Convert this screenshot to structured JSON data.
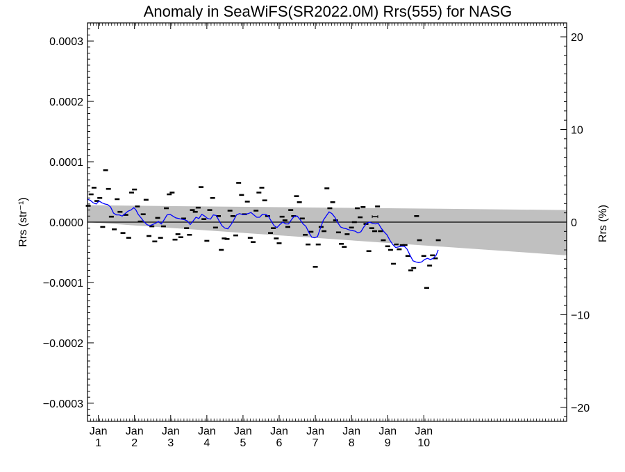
{
  "chart_data": {
    "type": "line",
    "title": "Anomaly in SeaWiFS(SR2022.0M) Rrs(555) for NASG",
    "ylabel_left": "Rrs (str⁻¹)",
    "ylabel_right": "Rrs (%)",
    "xlabel": "",
    "xlim": [
      1997.7,
      2010.95
    ],
    "ylim_left": [
      -0.00033,
      0.00033
    ],
    "ylim_right": [
      -21.5,
      21.5
    ],
    "grid": false,
    "x_ticks": [
      {
        "value": 1998,
        "line1": "Jan",
        "line2": "1"
      },
      {
        "value": 1999,
        "line1": "Jan",
        "line2": "2"
      },
      {
        "value": 2000,
        "line1": "Jan",
        "line2": "3"
      },
      {
        "value": 2001,
        "line1": "Jan",
        "line2": "4"
      },
      {
        "value": 2002,
        "line1": "Jan",
        "line2": "5"
      },
      {
        "value": 2003,
        "line1": "Jan",
        "line2": "6"
      },
      {
        "value": 2004,
        "line1": "Jan",
        "line2": "7"
      },
      {
        "value": 2005,
        "line1": "Jan",
        "line2": "8"
      },
      {
        "value": 2006,
        "line1": "Jan",
        "line2": "9"
      },
      {
        "value": 2007,
        "line1": "Jan",
        "line2": "10"
      }
    ],
    "y_ticks_left": [
      {
        "value": 0.0003,
        "label": "0.0003"
      },
      {
        "value": 0.0002,
        "label": "0.0002"
      },
      {
        "value": 0.0001,
        "label": "0.0001"
      },
      {
        "value": 0.0,
        "label": "0.0000"
      },
      {
        "value": -0.0001,
        "label": "−0.0001"
      },
      {
        "value": -0.0002,
        "label": "−0.0002"
      },
      {
        "value": -0.0003,
        "label": "−0.0003"
      }
    ],
    "y_ticks_right": [
      {
        "value": 20,
        "label": "20"
      },
      {
        "value": 10,
        "label": "10"
      },
      {
        "value": 0,
        "label": "0"
      },
      {
        "value": -10,
        "label": "−10"
      },
      {
        "value": -20,
        "label": "−20"
      }
    ],
    "band": {
      "color": "#c0c0c0",
      "upper": [
        [
          1997.7,
          2.8e-05
        ],
        [
          2010.95,
          2e-05
        ]
      ],
      "lower": [
        [
          1997.7,
          0.0
        ],
        [
          2010.95,
          -5.5e-05
        ]
      ]
    },
    "monthly_points": [
      [
        1997.72,
        2.7e-05
      ],
      [
        1997.8,
        4.6e-05
      ],
      [
        1997.88,
        5.7e-05
      ],
      [
        1997.96,
        3.5e-05
      ],
      [
        1998.04,
        4e-05
      ],
      [
        1998.12,
        -8e-06
      ],
      [
        1998.2,
        8.6e-05
      ],
      [
        1998.28,
        5.5e-05
      ],
      [
        1998.36,
        9e-06
      ],
      [
        1998.44,
        -1.2e-05
      ],
      [
        1998.52,
        3.8e-05
      ],
      [
        1998.6,
        1.7e-05
      ],
      [
        1998.68,
        -1.8e-05
      ],
      [
        1998.76,
        1.2e-05
      ],
      [
        1998.84,
        -2.6e-05
      ],
      [
        1998.92,
        4.9e-05
      ],
      [
        1999.0,
        5.4e-05
      ],
      [
        1999.08,
        2.6e-05
      ],
      [
        1999.16,
        1e-06
      ],
      [
        1999.24,
        1.3e-05
      ],
      [
        1999.32,
        3.7e-05
      ],
      [
        1999.4,
        -2.3e-05
      ],
      [
        1999.48,
        -7e-06
      ],
      [
        1999.56,
        -3.2e-05
      ],
      [
        1999.64,
        7e-06
      ],
      [
        1999.72,
        -2.6e-05
      ],
      [
        1999.8,
        -7e-06
      ],
      [
        1999.88,
        2.3e-05
      ],
      [
        1999.96,
        4.6e-05
      ],
      [
        2000.04,
        4.9e-05
      ],
      [
        2000.12,
        -2.9e-05
      ],
      [
        2000.2,
        -2e-05
      ],
      [
        2000.28,
        -2.5e-05
      ],
      [
        2000.36,
        6e-06
      ],
      [
        2000.44,
        -1e-05
      ],
      [
        2000.52,
        -2.1e-05
      ],
      [
        2000.6,
        2e-05
      ],
      [
        2000.68,
        1.7e-05
      ],
      [
        2000.76,
        2.4e-05
      ],
      [
        2000.84,
        5.8e-05
      ],
      [
        2000.92,
        5e-06
      ],
      [
        2001.0,
        -3.1e-05
      ],
      [
        2001.08,
        2e-05
      ],
      [
        2001.16,
        4e-05
      ],
      [
        2001.24,
        -9e-06
      ],
      [
        2001.32,
        1e-05
      ],
      [
        2001.4,
        -4.6e-05
      ],
      [
        2001.48,
        -2.7e-05
      ],
      [
        2001.56,
        -2.8e-05
      ],
      [
        2001.64,
        1.9e-05
      ],
      [
        2001.72,
        1e-05
      ],
      [
        2001.8,
        -2.2e-05
      ],
      [
        2001.88,
        6.5e-05
      ],
      [
        2001.96,
        4.5e-05
      ],
      [
        2002.04,
        1.3e-05
      ],
      [
        2002.12,
        3.4e-05
      ],
      [
        2002.2,
        -2.6e-05
      ],
      [
        2002.28,
        -3.3e-05
      ],
      [
        2002.36,
        1.9e-05
      ],
      [
        2002.44,
        4.9e-05
      ],
      [
        2002.52,
        5.7e-05
      ],
      [
        2002.6,
        3.6e-05
      ],
      [
        2002.68,
        1e-05
      ],
      [
        2002.76,
        -1.8e-05
      ],
      [
        2002.84,
        -1e-05
      ],
      [
        2002.92,
        -2.7e-05
      ],
      [
        2003.0,
        -3.5e-05
      ],
      [
        2003.08,
        9e-06
      ],
      [
        2003.16,
        3e-06
      ],
      [
        2003.24,
        -8e-06
      ],
      [
        2003.32,
        2e-05
      ],
      [
        2003.4,
        1e-05
      ],
      [
        2003.48,
        4.3e-05
      ],
      [
        2003.56,
        3.3e-05
      ],
      [
        2003.64,
        6e-06
      ],
      [
        2003.72,
        -2.1e-05
      ],
      [
        2003.8,
        -3.7e-05
      ],
      [
        2003.88,
        -1.6e-05
      ],
      [
        2004.0,
        -7.4e-05
      ],
      [
        2004.08,
        -3.7e-05
      ],
      [
        2004.16,
        -8e-06
      ],
      [
        2004.24,
        -1.5e-05
      ],
      [
        2004.32,
        5.6e-05
      ],
      [
        2004.4,
        2.3e-05
      ],
      [
        2004.48,
        3.3e-05
      ],
      [
        2004.56,
        3e-06
      ],
      [
        2004.64,
        -1.7e-05
      ],
      [
        2004.72,
        -3.6e-05
      ],
      [
        2004.8,
        -4.1e-05
      ],
      [
        2004.88,
        -2e-05
      ],
      [
        2005.0,
        -9e-06
      ],
      [
        2005.08,
        0.0
      ],
      [
        2005.16,
        2.3e-05
      ],
      [
        2005.24,
        8e-06
      ],
      [
        2005.32,
        2.5e-05
      ],
      [
        2005.4,
        -3e-06
      ],
      [
        2005.48,
        -4.8e-05
      ],
      [
        2005.56,
        -1e-05
      ],
      [
        2005.64,
        -1.5e-05
      ],
      [
        2005.72,
        2.6e-05
      ],
      [
        2005.8,
        -1.5e-05
      ],
      [
        2005.88,
        -3e-05
      ],
      [
        2006.0,
        -4e-05
      ],
      [
        2006.08,
        -4.6e-05
      ],
      [
        2006.16,
        -6.9e-05
      ],
      [
        2006.24,
        -3.7e-05
      ],
      [
        2006.32,
        -4.5e-05
      ],
      [
        2006.4,
        -3.8e-05
      ],
      [
        2006.48,
        -3.8e-05
      ],
      [
        2006.56,
        -5.6e-05
      ],
      [
        2006.64,
        -8e-05
      ],
      [
        2006.72,
        -7.6e-05
      ],
      [
        2006.8,
        1e-05
      ],
      [
        2006.88,
        -3e-05
      ],
      [
        2007.0,
        -5.6e-05
      ],
      [
        2007.08,
        -0.000109
      ],
      [
        2007.16,
        -7.2e-05
      ],
      [
        2007.24,
        -5.5e-05
      ],
      [
        2007.32,
        -6e-05
      ],
      [
        2007.4,
        -3e-05
      ]
    ],
    "error_bar": {
      "x": 2005.65,
      "y": 9e-06
    },
    "running_mean": {
      "name": "",
      "color": "#0000ff",
      "points": [
        [
          1997.7,
          3.8e-05
        ],
        [
          1997.78,
          3.6e-05
        ],
        [
          1997.86,
          3.2e-05
        ],
        [
          1997.94,
          3e-05
        ],
        [
          1998.02,
          3.5e-05
        ],
        [
          1998.1,
          3.2e-05
        ],
        [
          1998.18,
          3e-05
        ],
        [
          1998.26,
          2.9e-05
        ],
        [
          1998.34,
          2.5e-05
        ],
        [
          1998.42,
          1.5e-05
        ],
        [
          1998.5,
          1.2e-05
        ],
        [
          1998.58,
          1.2e-05
        ],
        [
          1998.66,
          1e-05
        ],
        [
          1998.74,
          1.4e-05
        ],
        [
          1998.82,
          1.8e-05
        ],
        [
          1998.9,
          2e-05
        ],
        [
          1998.98,
          2.4e-05
        ],
        [
          1999.04,
          2e-05
        ],
        [
          1999.1,
          1.3e-05
        ],
        [
          1999.18,
          7e-06
        ],
        [
          1999.26,
          1e-06
        ],
        [
          1999.34,
          -4e-06
        ],
        [
          1999.42,
          -6e-06
        ],
        [
          1999.5,
          -4e-06
        ],
        [
          1999.58,
          -2e-06
        ],
        [
          1999.66,
          1e-06
        ],
        [
          1999.74,
          -3e-06
        ],
        [
          1999.82,
          4e-06
        ],
        [
          1999.9,
          1.2e-05
        ],
        [
          1999.98,
          1.3e-05
        ],
        [
          2000.06,
          1e-05
        ],
        [
          2000.14,
          7e-06
        ],
        [
          2000.22,
          6e-06
        ],
        [
          2000.3,
          5e-06
        ],
        [
          2000.38,
          4e-06
        ],
        [
          2000.46,
          2e-06
        ],
        [
          2000.54,
          -4e-06
        ],
        [
          2000.62,
          2e-06
        ],
        [
          2000.7,
          8e-06
        ],
        [
          2000.78,
          6e-06
        ],
        [
          2000.86,
          1.3e-05
        ],
        [
          2000.94,
          1e-05
        ],
        [
          2001.02,
          6e-06
        ],
        [
          2001.1,
          5e-06
        ],
        [
          2001.18,
          1.2e-05
        ],
        [
          2001.26,
          1.1e-05
        ],
        [
          2001.34,
          2e-06
        ],
        [
          2001.42,
          -6e-06
        ],
        [
          2001.5,
          -1e-05
        ],
        [
          2001.58,
          -1.1e-05
        ],
        [
          2001.66,
          -5e-06
        ],
        [
          2001.74,
          3e-06
        ],
        [
          2001.82,
          1.2e-05
        ],
        [
          2001.9,
          1.4e-05
        ],
        [
          2001.98,
          1.3e-05
        ],
        [
          2002.06,
          1.3e-05
        ],
        [
          2002.14,
          1.4e-05
        ],
        [
          2002.22,
          1.6e-05
        ],
        [
          2002.3,
          1.2e-05
        ],
        [
          2002.38,
          8e-06
        ],
        [
          2002.46,
          8e-06
        ],
        [
          2002.54,
          1.3e-05
        ],
        [
          2002.62,
          1.3e-05
        ],
        [
          2002.7,
          1e-05
        ],
        [
          2002.78,
          2e-06
        ],
        [
          2002.86,
          -6e-06
        ],
        [
          2002.94,
          -9e-06
        ],
        [
          2003.02,
          -4e-06
        ],
        [
          2003.1,
          0.0
        ],
        [
          2003.18,
          -3e-06
        ],
        [
          2003.26,
          -3e-06
        ],
        [
          2003.34,
          4e-06
        ],
        [
          2003.42,
          1e-05
        ],
        [
          2003.5,
          1e-05
        ],
        [
          2003.58,
          4e-06
        ],
        [
          2003.66,
          -3e-06
        ],
        [
          2003.74,
          -7e-06
        ],
        [
          2003.82,
          -1.7e-05
        ],
        [
          2003.9,
          -2.5e-05
        ],
        [
          2003.98,
          -2.6e-05
        ],
        [
          2004.06,
          -2.4e-05
        ],
        [
          2004.14,
          -1e-05
        ],
        [
          2004.22,
          3e-06
        ],
        [
          2004.3,
          1e-05
        ],
        [
          2004.38,
          1.7e-05
        ],
        [
          2004.46,
          1.4e-05
        ],
        [
          2004.54,
          8e-06
        ],
        [
          2004.62,
          -1e-06
        ],
        [
          2004.7,
          -8e-06
        ],
        [
          2004.78,
          -1e-05
        ],
        [
          2004.86,
          -1.1e-05
        ],
        [
          2004.94,
          -1.3e-05
        ],
        [
          2005.02,
          -1.4e-05
        ],
        [
          2005.1,
          -1.5e-05
        ],
        [
          2005.18,
          -1.8e-05
        ],
        [
          2005.26,
          -1.6e-05
        ],
        [
          2005.34,
          -8e-06
        ],
        [
          2005.42,
          -2e-06
        ],
        [
          2005.5,
          0.0
        ],
        [
          2005.58,
          -2e-06
        ],
        [
          2005.66,
          -3e-06
        ],
        [
          2005.74,
          -2e-06
        ],
        [
          2005.82,
          -1e-05
        ],
        [
          2005.9,
          -1.6e-05
        ],
        [
          2005.98,
          -2.1e-05
        ],
        [
          2006.06,
          -3e-05
        ],
        [
          2006.14,
          -3.7e-05
        ],
        [
          2006.22,
          -4.2e-05
        ],
        [
          2006.3,
          -4.1e-05
        ],
        [
          2006.38,
          -4e-05
        ],
        [
          2006.46,
          -4e-05
        ],
        [
          2006.54,
          -4.5e-05
        ],
        [
          2006.62,
          -5.5e-05
        ],
        [
          2006.7,
          -6.4e-05
        ],
        [
          2006.78,
          -6.6e-05
        ],
        [
          2006.86,
          -6.7e-05
        ],
        [
          2006.94,
          -6.6e-05
        ],
        [
          2007.02,
          -6.2e-05
        ],
        [
          2007.1,
          -6e-05
        ],
        [
          2007.18,
          -6.2e-05
        ],
        [
          2007.26,
          -6e-05
        ],
        [
          2007.34,
          -5.5e-05
        ],
        [
          2007.4,
          -4.6e-05
        ]
      ]
    }
  }
}
